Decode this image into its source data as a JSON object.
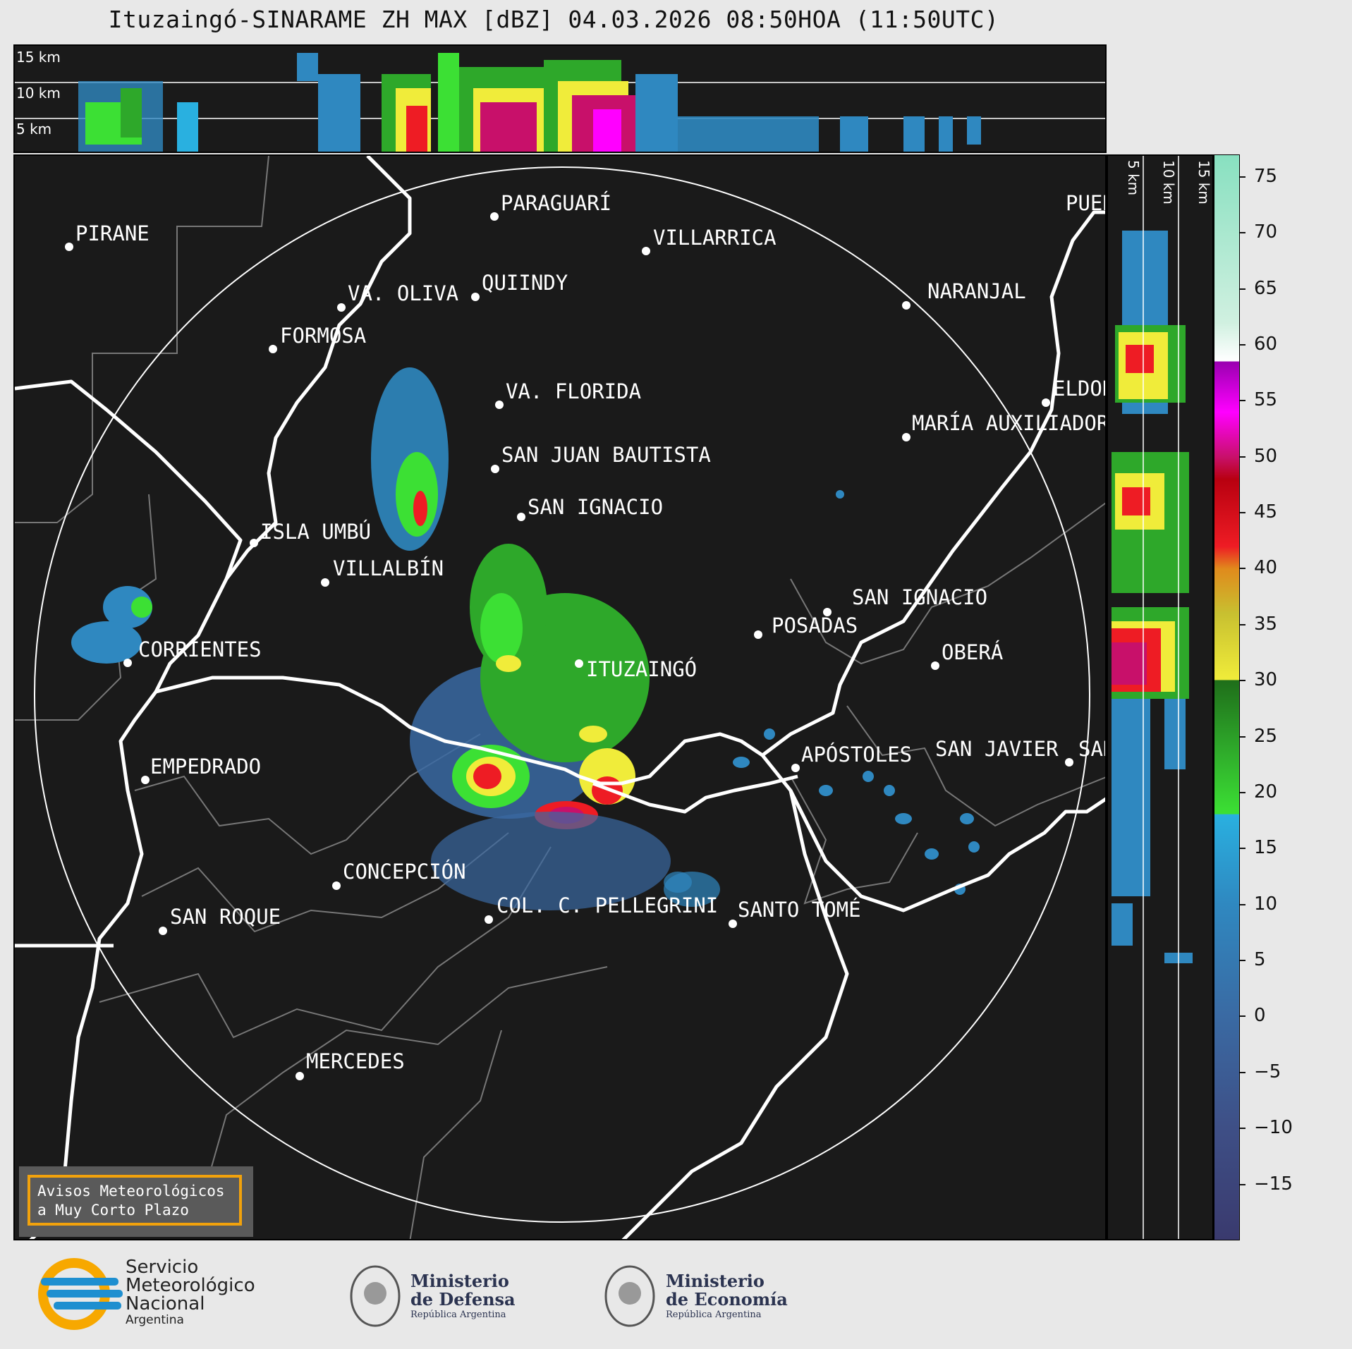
{
  "title": "Ituzaingó-SINARAME ZH MAX [dBZ] 04.03.2026 08:50HOA (11:50UTC)",
  "top_panel": {
    "km_labels": [
      "15 km",
      "10 km",
      "5 km"
    ]
  },
  "side_panel": {
    "km_labels": [
      "5 km",
      "10 km",
      "15 km"
    ]
  },
  "cities": [
    {
      "name": "PIRANE"
    },
    {
      "name": "PARAGUARÍ"
    },
    {
      "name": "VILLARRICA"
    },
    {
      "name": "PUERTO"
    },
    {
      "name": "QUIINDY"
    },
    {
      "name": "VA. OLIVA"
    },
    {
      "name": "NARANJAL"
    },
    {
      "name": "FORMOSA"
    },
    {
      "name": "VA. FLORIDA"
    },
    {
      "name": "ELDORADO"
    },
    {
      "name": "MARÍA AUXILIADORA"
    },
    {
      "name": "SAN JUAN BAUTISTA"
    },
    {
      "name": "SAN IGNACIO"
    },
    {
      "name": "ISLA UMBÚ"
    },
    {
      "name": "VILLALBÍN"
    },
    {
      "name": "SAN IGNACIO"
    },
    {
      "name": "POSADAS"
    },
    {
      "name": "CORRIENTES"
    },
    {
      "name": "ITUZAINGÓ"
    },
    {
      "name": "OBERÁ"
    },
    {
      "name": "EMPEDRADO"
    },
    {
      "name": "APÓSTOLES"
    },
    {
      "name": "SAN JAVIER"
    },
    {
      "name": "SAN"
    },
    {
      "name": "CONCEPCIÓN"
    },
    {
      "name": "COL. C. PELLEGRINI"
    },
    {
      "name": "SANTO TOMÉ"
    },
    {
      "name": "SAN ROQUE"
    },
    {
      "name": "MERCEDES"
    }
  ],
  "colorbar": {
    "unit": "dBZ",
    "min": -20,
    "max": 77,
    "ticks": [
      "75",
      "70",
      "65",
      "60",
      "55",
      "50",
      "45",
      "40",
      "35",
      "30",
      "25",
      "20",
      "15",
      "10",
      "5",
      "0",
      "−5",
      "−10",
      "−15"
    ],
    "tick_values": [
      75,
      70,
      65,
      60,
      55,
      50,
      45,
      40,
      35,
      30,
      25,
      20,
      15,
      10,
      5,
      0,
      -5,
      -10,
      -15
    ],
    "stops": [
      {
        "v": -20,
        "c": "#3a3a6e"
      },
      {
        "v": -10,
        "c": "#3e4f86"
      },
      {
        "v": 0,
        "c": "#3a6aa3"
      },
      {
        "v": 10,
        "c": "#2f88c0"
      },
      {
        "v": 18,
        "c": "#29b0e0"
      },
      {
        "v": 18.1,
        "c": "#3ce034"
      },
      {
        "v": 24,
        "c": "#2ea82a"
      },
      {
        "v": 30,
        "c": "#1f6e1a"
      },
      {
        "v": 30.1,
        "c": "#f0ec3a"
      },
      {
        "v": 36,
        "c": "#c8c030"
      },
      {
        "v": 40,
        "c": "#e08a1c"
      },
      {
        "v": 42,
        "c": "#ee1c24"
      },
      {
        "v": 48,
        "c": "#b80010"
      },
      {
        "v": 50,
        "c": "#c8106a"
      },
      {
        "v": 54,
        "c": "#ff00ff"
      },
      {
        "v": 58.5,
        "c": "#9a00b0"
      },
      {
        "v": 58.6,
        "c": "#ffffff"
      },
      {
        "v": 62,
        "c": "#d0f0e0"
      },
      {
        "v": 77,
        "c": "#88e0c0"
      }
    ]
  },
  "badge": {
    "line1": "Avisos Meteorológicos",
    "line2": "a Muy Corto Plazo"
  },
  "logos": {
    "smn": {
      "line1": "Servicio",
      "line2": "Meteorológico",
      "line3": "Nacional",
      "line4": "Argentina"
    },
    "defensa": {
      "line1": "Ministerio",
      "line2": "de Defensa",
      "line3": "República Argentina"
    },
    "economia": {
      "line1": "Ministerio",
      "line2": "de Economía",
      "line3": "República Argentina"
    }
  },
  "colors": {
    "background": "#1a1a1a",
    "page": "#e8e8e8",
    "badge_border": "#f2a20c",
    "smn_blue": "#1e8fd0",
    "smn_yellow": "#f7a800"
  }
}
